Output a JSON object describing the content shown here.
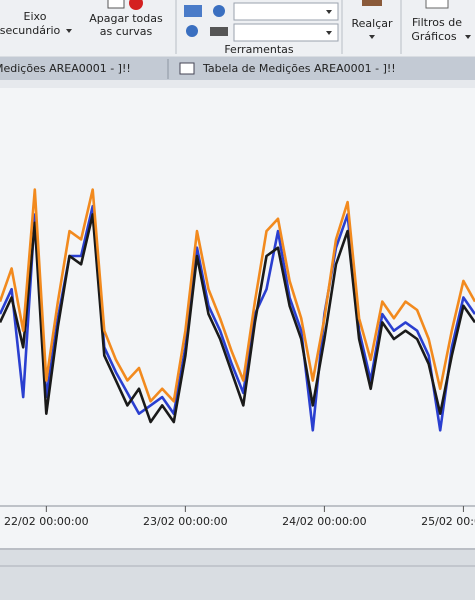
{
  "toolbar": {
    "axis_button": [
      "Eixo",
      "secundário"
    ],
    "clear_button": [
      "Apagar todas",
      "as curvas"
    ],
    "tools_group": "Ferramentas",
    "highlight_button": "Realçar",
    "filters_button": [
      "Filtros de",
      "Gráficos"
    ]
  },
  "tabs": [
    "Medições AREA0001 - ]!!",
    "Tabela de Medições AREA0001 - ]!!"
  ],
  "chart_data": {
    "type": "line",
    "x": [
      -8,
      -6,
      -4,
      -2,
      0,
      2,
      4,
      6,
      8,
      10,
      12,
      14,
      16,
      18,
      20,
      22,
      24,
      26,
      28,
      30,
      32,
      34,
      36,
      38,
      40,
      42,
      44,
      46,
      48,
      50,
      52,
      54,
      56,
      58,
      60,
      62,
      64,
      66,
      68,
      70,
      72,
      74
    ],
    "xlim": [
      -8,
      74
    ],
    "ylim": [
      0,
      100
    ],
    "xticks": [
      {
        "value": 0,
        "label": "22/02 00:00:00"
      },
      {
        "value": 24,
        "label": "23/02 00:00:00"
      },
      {
        "value": 48,
        "label": "24/02 00:00:00"
      },
      {
        "value": 72,
        "label": "25/02 00:00:00"
      }
    ],
    "series": [
      {
        "color": "#2a3fd0",
        "values": [
          46,
          52,
          26,
          70,
          26,
          45,
          60,
          60,
          72,
          38,
          32,
          27,
          22,
          24,
          26,
          22,
          38,
          62,
          48,
          42,
          34,
          27,
          46,
          52,
          66,
          50,
          42,
          18,
          46,
          62,
          70,
          42,
          30,
          46,
          42,
          44,
          42,
          36,
          18,
          38,
          50,
          46
        ]
      },
      {
        "color": "#1a1a1a",
        "values": [
          44,
          50,
          38,
          68,
          22,
          43,
          60,
          58,
          70,
          36,
          30,
          24,
          28,
          20,
          24,
          20,
          36,
          60,
          46,
          40,
          32,
          24,
          44,
          60,
          62,
          48,
          40,
          24,
          40,
          58,
          66,
          40,
          28,
          44,
          40,
          42,
          40,
          34,
          22,
          36,
          48,
          44
        ]
      },
      {
        "color": "#f28a1e",
        "values": [
          49,
          57,
          42,
          76,
          30,
          49,
          66,
          64,
          76,
          42,
          35,
          30,
          33,
          25,
          28,
          25,
          42,
          66,
          52,
          45,
          37,
          30,
          49,
          66,
          69,
          54,
          45,
          30,
          45,
          64,
          73,
          45,
          35,
          49,
          45,
          49,
          47,
          40,
          28,
          42,
          54,
          49
        ]
      }
    ]
  }
}
